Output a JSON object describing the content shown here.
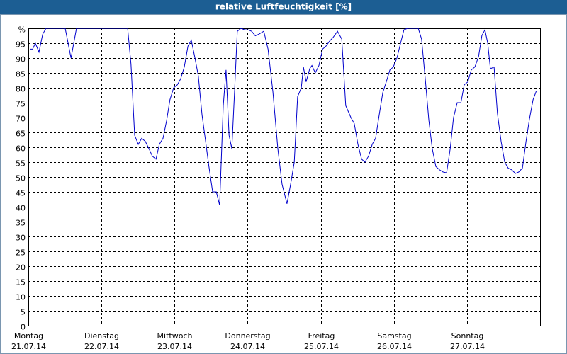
{
  "chart_data": {
    "type": "line",
    "title": "relative Luftfeuchtigkeit [%]",
    "x": [
      0.5,
      1.4,
      2.3,
      3.5,
      4.7,
      5.8,
      12.1,
      14.0,
      15.8,
      32.6,
      33.7,
      34.9,
      36.1,
      37.2,
      38.4,
      39.6,
      40.7,
      41.9,
      43.0,
      44.2,
      45.4,
      46.5,
      47.7,
      48.9,
      50.0,
      51.2,
      52.4,
      53.5,
      54.7,
      55.8,
      57.0,
      58.2,
      59.3,
      60.5,
      61.7,
      62.8,
      64.0,
      64.9,
      65.9,
      66.8,
      67.7,
      68.6,
      69.8,
      71.0,
      72.1,
      73.3,
      74.5,
      75.6,
      77.3,
      78.7,
      80.3,
      81.9,
      83.3,
      84.9,
      86.1,
      87.3,
      88.4,
      89.6,
      90.3,
      91.2,
      92.4,
      93.1,
      94.2,
      95.4,
      96.6,
      97.7,
      98.9,
      100.1,
      101.5,
      102.9,
      104.2,
      105.9,
      107.0,
      108.2,
      109.4,
      110.5,
      111.7,
      112.9,
      114.0,
      115.2,
      116.4,
      117.5,
      118.7,
      119.8,
      121.0,
      122.2,
      123.3,
      124.5,
      128.0,
      129.1,
      130.3,
      131.5,
      132.6,
      133.8,
      135.0,
      136.1,
      137.3,
      138.5,
      139.6,
      140.8,
      142.0,
      143.1,
      144.3,
      145.4,
      146.6,
      147.8,
      148.9,
      149.9,
      150.8,
      151.7,
      152.9,
      154.0,
      155.2,
      156.4,
      157.5,
      158.7,
      159.9,
      161.0,
      162.2,
      163.4,
      164.5,
      165.7,
      166.8
    ],
    "series": [
      {
        "color": "#0000cc",
        "values": [
          93,
          93,
          95,
          92,
          98,
          100,
          100,
          90,
          100,
          100,
          88,
          64,
          61,
          63,
          62,
          59.5,
          57,
          56,
          61,
          63,
          69,
          76,
          80,
          81,
          83,
          87,
          94,
          96,
          90,
          84,
          71,
          62,
          53.5,
          45,
          45,
          40.5,
          74,
          86,
          64,
          59.5,
          78.5,
          99,
          100,
          99.5,
          99.5,
          99,
          97.5,
          98,
          99,
          93,
          78.5,
          59.5,
          47.5,
          41,
          47.5,
          55,
          77,
          80,
          87,
          82,
          86.5,
          87.5,
          85,
          87.5,
          93,
          94,
          95.7,
          97,
          99,
          96.4,
          74,
          70,
          68,
          61,
          56,
          55,
          57,
          61,
          63,
          71,
          78.5,
          82,
          86,
          87,
          90,
          95,
          99.5,
          100,
          100,
          96.4,
          83,
          69,
          59.5,
          53.5,
          52.4,
          51.7,
          51.4,
          59.5,
          70,
          75,
          75,
          81,
          82,
          86,
          87,
          90.5,
          97.6,
          99.5,
          95,
          86.4,
          87,
          71.4,
          62,
          55,
          53,
          52.4,
          51.2,
          51.7,
          53,
          62,
          69.5,
          76,
          79
        ]
      }
    ],
    "xlim": [
      0,
      168
    ],
    "xticks": [
      {
        "value": 0,
        "label": "Montag",
        "date": "21.07.14"
      },
      {
        "value": 24,
        "label": "Dienstag",
        "date": "22.07.14"
      },
      {
        "value": 48,
        "label": "Mittwoch",
        "date": "23.07.14"
      },
      {
        "value": 72,
        "label": "Donnerstag",
        "date": "24.07.14"
      },
      {
        "value": 96,
        "label": "Freitag",
        "date": "25.07.14"
      },
      {
        "value": 120,
        "label": "Samstag",
        "date": "26.07.14"
      },
      {
        "value": 144,
        "label": "Sonntag",
        "date": "27.07.14"
      },
      168
    ],
    "ylim": [
      0,
      100
    ],
    "yticks": [
      0,
      5,
      10,
      15,
      20,
      25,
      30,
      35,
      40,
      45,
      50,
      55,
      60,
      65,
      70,
      75,
      80,
      85,
      90,
      95,
      {
        "value": 100,
        "label": "%"
      }
    ],
    "grid": true
  }
}
